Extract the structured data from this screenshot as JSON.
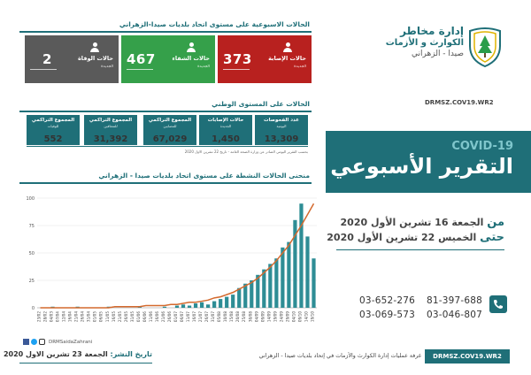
{
  "header": {
    "org_line1": "إدارة مخاطر",
    "org_line2": "الكوارث و الأزمات",
    "org_line3": "صيدا - الزهراني",
    "url": "DRMSZ.COV19.WR2"
  },
  "banner": {
    "covid": "COVID-19",
    "title": "التقرير الأسبوعي"
  },
  "date_range": {
    "from_word": "من",
    "from": "الجمعة 16 تشرين الأول 2020",
    "to_word": "حتى",
    "to": "الخميس 22 تشرين الأول 2020"
  },
  "contacts": {
    "phones": [
      "81-397-688",
      "03-652-276",
      "03-046-807",
      "03-069-573"
    ]
  },
  "footer": {
    "url": "DRMSZ.COV19.WR2",
    "text": "غرفة عمليات إدارة الكوارث والأزمات في إتحاد بلديات صيدا - الزهراني",
    "social": "DRMSaidaZahrani",
    "publish_label": "تاريخ النشر:",
    "publish_date": "الجمعة 23 تشرين الاول 2020"
  },
  "weekly": {
    "title": "الحالات الاسبوعية على مستوى اتحاد بلديات صيدا-الزهراني",
    "cards": [
      {
        "label": "حالات الإصابة",
        "sub": "الجديدة",
        "value": "373",
        "color": "#b8211f"
      },
      {
        "label": "حالات الشفاء",
        "sub": "الجديدة",
        "value": "467",
        "color": "#35a04a"
      },
      {
        "label": "حالات الوفاة",
        "sub": "الجديدة",
        "value": "2",
        "color": "#5a5a5a"
      }
    ]
  },
  "national": {
    "title": "الحالات على المستوى الوطني",
    "cards": [
      {
        "label": "عدد الفحوصات",
        "sub": "اليومية",
        "value": "13,309"
      },
      {
        "label": "حالات الإصابات",
        "sub": "الجديدة",
        "value": "1,450"
      },
      {
        "label": "المجموع التراكمي",
        "sub": "للمصابين",
        "value": "67,029"
      },
      {
        "label": "المجموع التراكمي",
        "sub": "للمتعافين",
        "value": "31,392"
      },
      {
        "label": "المجموع التراكمي",
        "sub": "للوفيات",
        "value": "552"
      }
    ],
    "source": "بحسب التقرير اليومي الصادر عن وزارة الصحة العامة - تاريخ 22 تشرين الاول 2020"
  },
  "chart_data": {
    "type": "bar",
    "title": "منحنى الحالات النشطة على مستوى اتحاد بلديات صيدا - الزهراني",
    "ylim": [
      0,
      100
    ],
    "yticks": [
      0,
      25,
      50,
      75,
      100
    ],
    "categories": [
      "23/02",
      "28/02",
      "04/03",
      "07/04",
      "12/04",
      "16/04",
      "21/04",
      "26/04",
      "31/04",
      "01/05",
      "06/05",
      "11/05",
      "16/05",
      "21/05",
      "26/05",
      "31/05",
      "01/06",
      "06/06",
      "11/06",
      "16/06",
      "21/06",
      "26/06",
      "01/07",
      "06/07",
      "11/07",
      "16/07",
      "21/07",
      "26/07",
      "31/07",
      "05/08",
      "10/08",
      "15/08",
      "20/08",
      "25/08",
      "30/08",
      "04/09",
      "09/09",
      "14/09",
      "19/09",
      "24/09",
      "29/09",
      "04/10",
      "09/10",
      "14/10",
      "19/10"
    ],
    "values": [
      0,
      0,
      1,
      0,
      0,
      0,
      1,
      0,
      0,
      0,
      0,
      1,
      0,
      0,
      0,
      0,
      1,
      0,
      0,
      0,
      1,
      0,
      2,
      3,
      2,
      4,
      5,
      3,
      6,
      8,
      10,
      12,
      18,
      22,
      25,
      30,
      35,
      40,
      45,
      55,
      60,
      80,
      95,
      65,
      45
    ],
    "trend": [
      0,
      0,
      0,
      0,
      0,
      0,
      0,
      0,
      0,
      0,
      0,
      0,
      1,
      1,
      1,
      1,
      1,
      2,
      2,
      2,
      2,
      3,
      3,
      4,
      5,
      5,
      6,
      7,
      9,
      10,
      12,
      14,
      17,
      20,
      23,
      27,
      32,
      37,
      43,
      50,
      57,
      66,
      75,
      85,
      95
    ]
  },
  "colors": {
    "teal": "#1f6f78",
    "accent": "#2e8d95",
    "orange": "#d46a2e"
  }
}
